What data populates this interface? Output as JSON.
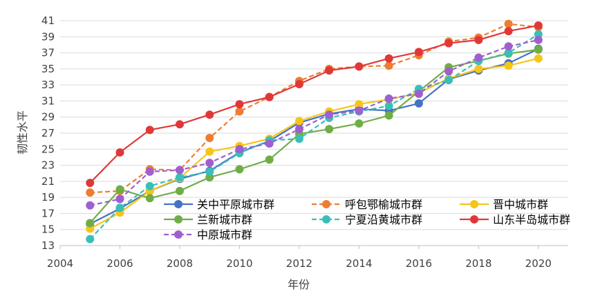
{
  "chart_data": {
    "type": "line",
    "title": "",
    "xlabel": "年份",
    "ylabel": "韧性水平",
    "xlim": [
      2004,
      2021
    ],
    "ylim": [
      13,
      41
    ],
    "xticks": [
      2004,
      2006,
      2008,
      2010,
      2012,
      2014,
      2016,
      2018,
      2020
    ],
    "xtick_labels": [
      "2004",
      "2006",
      "2008",
      "2010",
      "2012",
      "2014",
      "2016",
      "2018",
      "2020"
    ],
    "yticks": [
      13,
      15,
      17,
      19,
      21,
      23,
      25,
      27,
      29,
      31,
      33,
      35,
      37,
      39,
      41
    ],
    "ytick_labels": [
      "13",
      "15",
      "17",
      "19",
      "21",
      "23",
      "25",
      "27",
      "29",
      "31",
      "33",
      "35",
      "37",
      "39",
      "41"
    ],
    "grid": "horizontal",
    "legend_position": "inside-bottom",
    "x": [
      2005,
      2006,
      2007,
      2008,
      2009,
      2010,
      2011,
      2012,
      2013,
      2014,
      2015,
      2016,
      2017,
      2018,
      2019,
      2020
    ],
    "series": [
      {
        "name": "关中平原城市群",
        "color": "#4472C4",
        "dash": "solid",
        "values": [
          15.7,
          17.6,
          19.8,
          21.3,
          22.3,
          24.6,
          26.0,
          28.3,
          29.4,
          30.0,
          29.8,
          30.7,
          33.7,
          34.8,
          35.7,
          37.5
        ]
      },
      {
        "name": "呼包鄂榆城市群",
        "color": "#ED7D31",
        "dash": "dashed",
        "values": [
          19.6,
          19.8,
          22.5,
          22.4,
          26.4,
          29.7,
          31.5,
          33.5,
          35.0,
          35.3,
          35.4,
          36.7,
          38.4,
          38.9,
          40.6,
          40.2
        ]
      },
      {
        "name": "晋中城市群",
        "color": "#F5C518",
        "dash": "solid",
        "values": [
          15.1,
          17.1,
          19.8,
          21.4,
          24.7,
          25.4,
          26.3,
          28.5,
          29.7,
          30.6,
          31.2,
          32.0,
          33.8,
          35.0,
          35.4,
          36.3
        ]
      },
      {
        "name": "兰新城市群",
        "color": "#70AD47",
        "dash": "solid",
        "values": [
          15.8,
          20.0,
          18.9,
          19.8,
          21.5,
          22.5,
          23.7,
          26.9,
          27.5,
          28.2,
          29.2,
          32.2,
          35.2,
          36.0,
          36.9,
          37.4
        ]
      },
      {
        "name": "宁夏沿黄城市群",
        "color": "#38C0B8",
        "dash": "dashed",
        "values": [
          13.8,
          17.7,
          20.4,
          21.5,
          22.2,
          24.5,
          26.1,
          26.3,
          28.9,
          29.7,
          30.4,
          32.5,
          33.6,
          36.0,
          37.0,
          39.3
        ]
      },
      {
        "name": "山东半岛城市群",
        "color": "#E03838",
        "dash": "solid",
        "values": [
          20.8,
          24.6,
          27.4,
          28.1,
          29.3,
          30.6,
          31.5,
          33.1,
          34.8,
          35.3,
          36.3,
          37.1,
          38.2,
          38.6,
          39.7,
          40.4
        ]
      },
      {
        "name": "中原城市群",
        "color": "#A05FD0",
        "dash": "dashed",
        "values": [
          18.0,
          18.8,
          22.2,
          22.4,
          23.3,
          25.0,
          25.7,
          27.5,
          29.3,
          29.8,
          31.3,
          31.9,
          34.7,
          36.4,
          37.8,
          38.6
        ]
      }
    ]
  }
}
